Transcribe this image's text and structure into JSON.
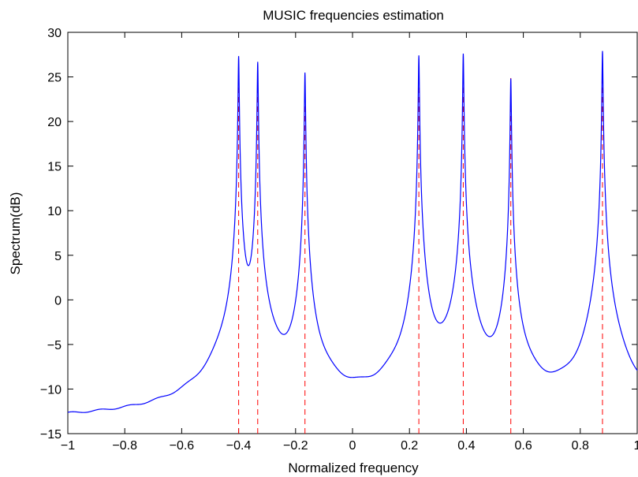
{
  "chart_data": {
    "type": "line",
    "title": "MUSIC frequencies estimation",
    "xlabel": "Normalized frequency",
    "ylabel": "Spectrum(dB)",
    "xlim": [
      -1,
      1
    ],
    "ylim": [
      -15,
      30
    ],
    "grid": false,
    "legend": "none",
    "x_ticks": [
      -1,
      -0.8,
      -0.6,
      -0.4,
      -0.2,
      0,
      0.2,
      0.4,
      0.6,
      0.8,
      1
    ],
    "x_tick_labels": [
      "−1",
      "−0.8",
      "−0.6",
      "−0.4",
      "−0.2",
      "0",
      "0.2",
      "0.4",
      "0.6",
      "0.8",
      "1"
    ],
    "y_ticks": [
      -15,
      -10,
      -5,
      0,
      5,
      10,
      15,
      20,
      25,
      30
    ],
    "y_tick_labels": [
      "−15",
      "−10",
      "−5",
      "0",
      "5",
      "10",
      "15",
      "20",
      "25",
      "30"
    ],
    "series": [
      {
        "color": "#0000ff",
        "style": "solid",
        "baseline": -13.6,
        "peaks": [
          {
            "x": -0.4,
            "y": 27.3
          },
          {
            "x": -0.333,
            "y": 26.8
          },
          {
            "x": -0.167,
            "y": 25.4
          },
          {
            "x": 0.233,
            "y": 27.3
          },
          {
            "x": 0.389,
            "y": 27.7
          },
          {
            "x": 0.556,
            "y": 24.8
          },
          {
            "x": 0.878,
            "y": 28.0
          }
        ],
        "dip_between_first_two": {
          "x": -0.37,
          "y": -0.6
        }
      },
      {
        "color": "#ff0000",
        "style": "dashed",
        "true_frequencies": [
          -0.4,
          -0.333,
          -0.167,
          0.233,
          0.389,
          0.556,
          0.878
        ],
        "line_from": -15,
        "line_to": 25
      }
    ]
  }
}
